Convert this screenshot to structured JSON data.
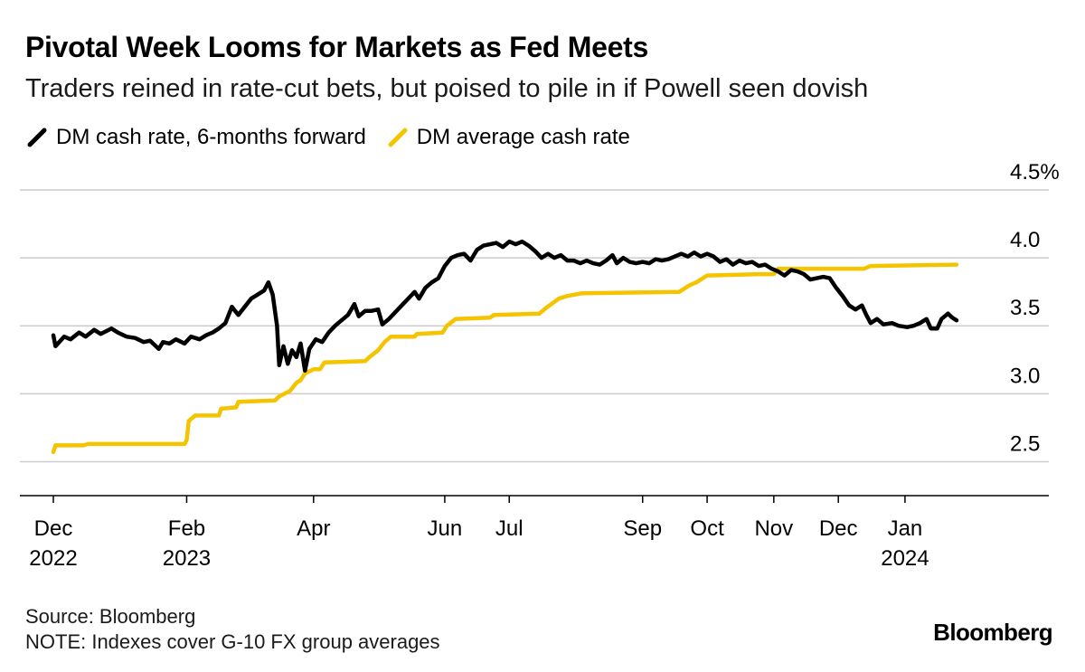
{
  "title": "Pivotal Week Looms for Markets as Fed Meets",
  "subtitle": "Traders reined in rate-cut bets, but poised to pile in if Powell seen dovish",
  "colors": {
    "black_series": "#000000",
    "yellow_series": "#F5C400",
    "grid": "#cccccc"
  },
  "chart_data": {
    "type": "line",
    "title": "Pivotal Week Looms for Markets as Fed Meets",
    "ylabel": "%",
    "ylim": [
      2.25,
      4.5
    ],
    "yticks": [
      {
        "value": 4.5,
        "label": "4.5%"
      },
      {
        "value": 4.0,
        "label": "4.0"
      },
      {
        "value": 3.5,
        "label": "3.5"
      },
      {
        "value": 3.0,
        "label": "3.0"
      },
      {
        "value": 2.5,
        "label": "2.5"
      }
    ],
    "xlim": [
      "2022-12-01",
      "2024-01-25"
    ],
    "xticks": [
      {
        "date": "2022-12-01",
        "label": "Dec",
        "sublabel": "2022"
      },
      {
        "date": "2023-02-01",
        "label": "Feb",
        "sublabel": "2023"
      },
      {
        "date": "2023-04-01",
        "label": "Apr",
        "sublabel": ""
      },
      {
        "date": "2023-06-01",
        "label": "Jun",
        "sublabel": ""
      },
      {
        "date": "2023-07-01",
        "label": "Jul",
        "sublabel": ""
      },
      {
        "date": "2023-09-01",
        "label": "Sep",
        "sublabel": ""
      },
      {
        "date": "2023-10-01",
        "label": "Oct",
        "sublabel": ""
      },
      {
        "date": "2023-11-01",
        "label": "Nov",
        "sublabel": ""
      },
      {
        "date": "2023-12-01",
        "label": "Dec",
        "sublabel": ""
      },
      {
        "date": "2024-01-01",
        "label": "Jan",
        "sublabel": "2024"
      }
    ],
    "series": [
      {
        "name": "DM cash rate, 6-months forward",
        "color": "#000000",
        "points": [
          [
            "2022-12-01",
            3.43
          ],
          [
            "2022-12-02",
            3.35
          ],
          [
            "2022-12-06",
            3.42
          ],
          [
            "2022-12-09",
            3.4
          ],
          [
            "2022-12-13",
            3.45
          ],
          [
            "2022-12-16",
            3.42
          ],
          [
            "2022-12-20",
            3.47
          ],
          [
            "2022-12-23",
            3.44
          ],
          [
            "2022-12-28",
            3.48
          ],
          [
            "2022-12-31",
            3.45
          ],
          [
            "2023-01-04",
            3.42
          ],
          [
            "2023-01-08",
            3.41
          ],
          [
            "2023-01-12",
            3.38
          ],
          [
            "2023-01-15",
            3.39
          ],
          [
            "2023-01-19",
            3.33
          ],
          [
            "2023-01-21",
            3.38
          ],
          [
            "2023-01-24",
            3.37
          ],
          [
            "2023-01-27",
            3.4
          ],
          [
            "2023-01-31",
            3.37
          ],
          [
            "2023-02-03",
            3.42
          ],
          [
            "2023-02-07",
            3.4
          ],
          [
            "2023-02-10",
            3.43
          ],
          [
            "2023-02-13",
            3.45
          ],
          [
            "2023-02-16",
            3.48
          ],
          [
            "2023-02-19",
            3.52
          ],
          [
            "2023-02-22",
            3.64
          ],
          [
            "2023-02-25",
            3.58
          ],
          [
            "2023-02-28",
            3.64
          ],
          [
            "2023-03-03",
            3.7
          ],
          [
            "2023-03-06",
            3.73
          ],
          [
            "2023-03-09",
            3.76
          ],
          [
            "2023-03-11",
            3.82
          ],
          [
            "2023-03-13",
            3.73
          ],
          [
            "2023-03-15",
            3.5
          ],
          [
            "2023-03-16",
            3.21
          ],
          [
            "2023-03-18",
            3.35
          ],
          [
            "2023-03-20",
            3.22
          ],
          [
            "2023-03-22",
            3.32
          ],
          [
            "2023-03-24",
            3.27
          ],
          [
            "2023-03-26",
            3.37
          ],
          [
            "2023-03-28",
            3.17
          ],
          [
            "2023-03-30",
            3.33
          ],
          [
            "2023-04-02",
            3.4
          ],
          [
            "2023-04-05",
            3.38
          ],
          [
            "2023-04-08",
            3.45
          ],
          [
            "2023-04-11",
            3.5
          ],
          [
            "2023-04-14",
            3.54
          ],
          [
            "2023-04-17",
            3.58
          ],
          [
            "2023-04-20",
            3.66
          ],
          [
            "2023-04-22",
            3.57
          ],
          [
            "2023-04-25",
            3.61
          ],
          [
            "2023-04-28",
            3.61
          ],
          [
            "2023-05-01",
            3.62
          ],
          [
            "2023-05-03",
            3.51
          ],
          [
            "2023-05-06",
            3.55
          ],
          [
            "2023-05-09",
            3.6
          ],
          [
            "2023-05-12",
            3.65
          ],
          [
            "2023-05-15",
            3.7
          ],
          [
            "2023-05-18",
            3.75
          ],
          [
            "2023-05-20",
            3.7
          ],
          [
            "2023-05-23",
            3.78
          ],
          [
            "2023-05-26",
            3.82
          ],
          [
            "2023-05-29",
            3.85
          ],
          [
            "2023-06-01",
            3.94
          ],
          [
            "2023-06-04",
            4.0
          ],
          [
            "2023-06-07",
            4.02
          ],
          [
            "2023-06-10",
            4.03
          ],
          [
            "2023-06-13",
            3.98
          ],
          [
            "2023-06-16",
            4.06
          ],
          [
            "2023-06-19",
            4.09
          ],
          [
            "2023-06-22",
            4.1
          ],
          [
            "2023-06-25",
            4.11
          ],
          [
            "2023-06-28",
            4.08
          ],
          [
            "2023-07-01",
            4.12
          ],
          [
            "2023-07-04",
            4.1
          ],
          [
            "2023-07-07",
            4.12
          ],
          [
            "2023-07-10",
            4.09
          ],
          [
            "2023-07-13",
            4.05
          ],
          [
            "2023-07-16",
            4.0
          ],
          [
            "2023-07-19",
            4.03
          ],
          [
            "2023-07-22",
            4.0
          ],
          [
            "2023-07-25",
            4.02
          ],
          [
            "2023-07-28",
            3.98
          ],
          [
            "2023-07-31",
            3.98
          ],
          [
            "2023-08-03",
            3.96
          ],
          [
            "2023-08-06",
            3.98
          ],
          [
            "2023-08-09",
            3.96
          ],
          [
            "2023-08-12",
            3.95
          ],
          [
            "2023-08-15",
            3.98
          ],
          [
            "2023-08-18",
            4.02
          ],
          [
            "2023-08-20",
            3.96
          ],
          [
            "2023-08-23",
            4.0
          ],
          [
            "2023-08-26",
            3.97
          ],
          [
            "2023-08-29",
            3.96
          ],
          [
            "2023-09-01",
            3.97
          ],
          [
            "2023-09-04",
            3.96
          ],
          [
            "2023-09-07",
            3.99
          ],
          [
            "2023-09-10",
            3.98
          ],
          [
            "2023-09-13",
            3.99
          ],
          [
            "2023-09-16",
            4.01
          ],
          [
            "2023-09-19",
            4.03
          ],
          [
            "2023-09-22",
            4.01
          ],
          [
            "2023-09-25",
            4.04
          ],
          [
            "2023-09-28",
            4.01
          ],
          [
            "2023-10-01",
            4.03
          ],
          [
            "2023-10-04",
            4.01
          ],
          [
            "2023-10-07",
            3.97
          ],
          [
            "2023-10-10",
            3.99
          ],
          [
            "2023-10-13",
            3.95
          ],
          [
            "2023-10-16",
            3.98
          ],
          [
            "2023-10-19",
            3.96
          ],
          [
            "2023-10-22",
            3.97
          ],
          [
            "2023-10-25",
            3.94
          ],
          [
            "2023-10-28",
            3.95
          ],
          [
            "2023-10-31",
            3.92
          ],
          [
            "2023-11-03",
            3.9
          ],
          [
            "2023-11-06",
            3.87
          ],
          [
            "2023-11-09",
            3.91
          ],
          [
            "2023-11-12",
            3.9
          ],
          [
            "2023-11-15",
            3.88
          ],
          [
            "2023-11-18",
            3.84
          ],
          [
            "2023-11-21",
            3.85
          ],
          [
            "2023-11-24",
            3.86
          ],
          [
            "2023-11-27",
            3.85
          ],
          [
            "2023-11-30",
            3.78
          ],
          [
            "2023-12-03",
            3.72
          ],
          [
            "2023-12-06",
            3.65
          ],
          [
            "2023-12-09",
            3.62
          ],
          [
            "2023-12-12",
            3.65
          ],
          [
            "2023-12-14",
            3.58
          ],
          [
            "2023-12-16",
            3.52
          ],
          [
            "2023-12-19",
            3.55
          ],
          [
            "2023-12-22",
            3.51
          ],
          [
            "2023-12-26",
            3.52
          ],
          [
            "2023-12-29",
            3.5
          ],
          [
            "2024-01-02",
            3.49
          ],
          [
            "2024-01-05",
            3.5
          ],
          [
            "2024-01-08",
            3.52
          ],
          [
            "2024-01-11",
            3.55
          ],
          [
            "2024-01-13",
            3.48
          ],
          [
            "2024-01-16",
            3.48
          ],
          [
            "2024-01-18",
            3.55
          ],
          [
            "2024-01-21",
            3.59
          ],
          [
            "2024-01-23",
            3.56
          ],
          [
            "2024-01-25",
            3.54
          ]
        ]
      },
      {
        "name": "DM average cash rate",
        "color": "#F5C400",
        "points": [
          [
            "2022-12-01",
            2.57
          ],
          [
            "2022-12-02",
            2.62
          ],
          [
            "2022-12-15",
            2.62
          ],
          [
            "2022-12-17",
            2.63
          ],
          [
            "2023-01-31",
            2.63
          ],
          [
            "2023-02-01",
            2.66
          ],
          [
            "2023-02-02",
            2.8
          ],
          [
            "2023-02-05",
            2.84
          ],
          [
            "2023-02-16",
            2.84
          ],
          [
            "2023-02-17",
            2.89
          ],
          [
            "2023-02-24",
            2.9
          ],
          [
            "2023-02-25",
            2.94
          ],
          [
            "2023-03-14",
            2.95
          ],
          [
            "2023-03-16",
            2.98
          ],
          [
            "2023-03-21",
            3.02
          ],
          [
            "2023-03-24",
            3.08
          ],
          [
            "2023-03-26",
            3.1
          ],
          [
            "2023-03-28",
            3.15
          ],
          [
            "2023-04-01",
            3.18
          ],
          [
            "2023-04-04",
            3.18
          ],
          [
            "2023-04-06",
            3.23
          ],
          [
            "2023-04-25",
            3.24
          ],
          [
            "2023-04-27",
            3.27
          ],
          [
            "2023-05-01",
            3.32
          ],
          [
            "2023-05-04",
            3.38
          ],
          [
            "2023-05-07",
            3.42
          ],
          [
            "2023-05-18",
            3.42
          ],
          [
            "2023-05-19",
            3.44
          ],
          [
            "2023-05-31",
            3.45
          ],
          [
            "2023-06-02",
            3.5
          ],
          [
            "2023-06-06",
            3.55
          ],
          [
            "2023-06-22",
            3.56
          ],
          [
            "2023-06-24",
            3.58
          ],
          [
            "2023-07-15",
            3.59
          ],
          [
            "2023-07-18",
            3.63
          ],
          [
            "2023-07-24",
            3.7
          ],
          [
            "2023-07-28",
            3.72
          ],
          [
            "2023-08-04",
            3.74
          ],
          [
            "2023-09-18",
            3.75
          ],
          [
            "2023-09-20",
            3.77
          ],
          [
            "2023-09-23",
            3.8
          ],
          [
            "2023-09-26",
            3.82
          ],
          [
            "2023-09-29",
            3.85
          ],
          [
            "2023-10-01",
            3.87
          ],
          [
            "2023-10-25",
            3.88
          ],
          [
            "2023-11-01",
            3.88
          ],
          [
            "2023-11-03",
            3.92
          ],
          [
            "2023-12-13",
            3.92
          ],
          [
            "2023-12-16",
            3.94
          ],
          [
            "2024-01-25",
            3.95
          ]
        ]
      }
    ]
  },
  "footer": {
    "source": "Source: Bloomberg",
    "note": "NOTE: Indexes cover G-10 FX group averages"
  },
  "brand": "Bloomberg"
}
